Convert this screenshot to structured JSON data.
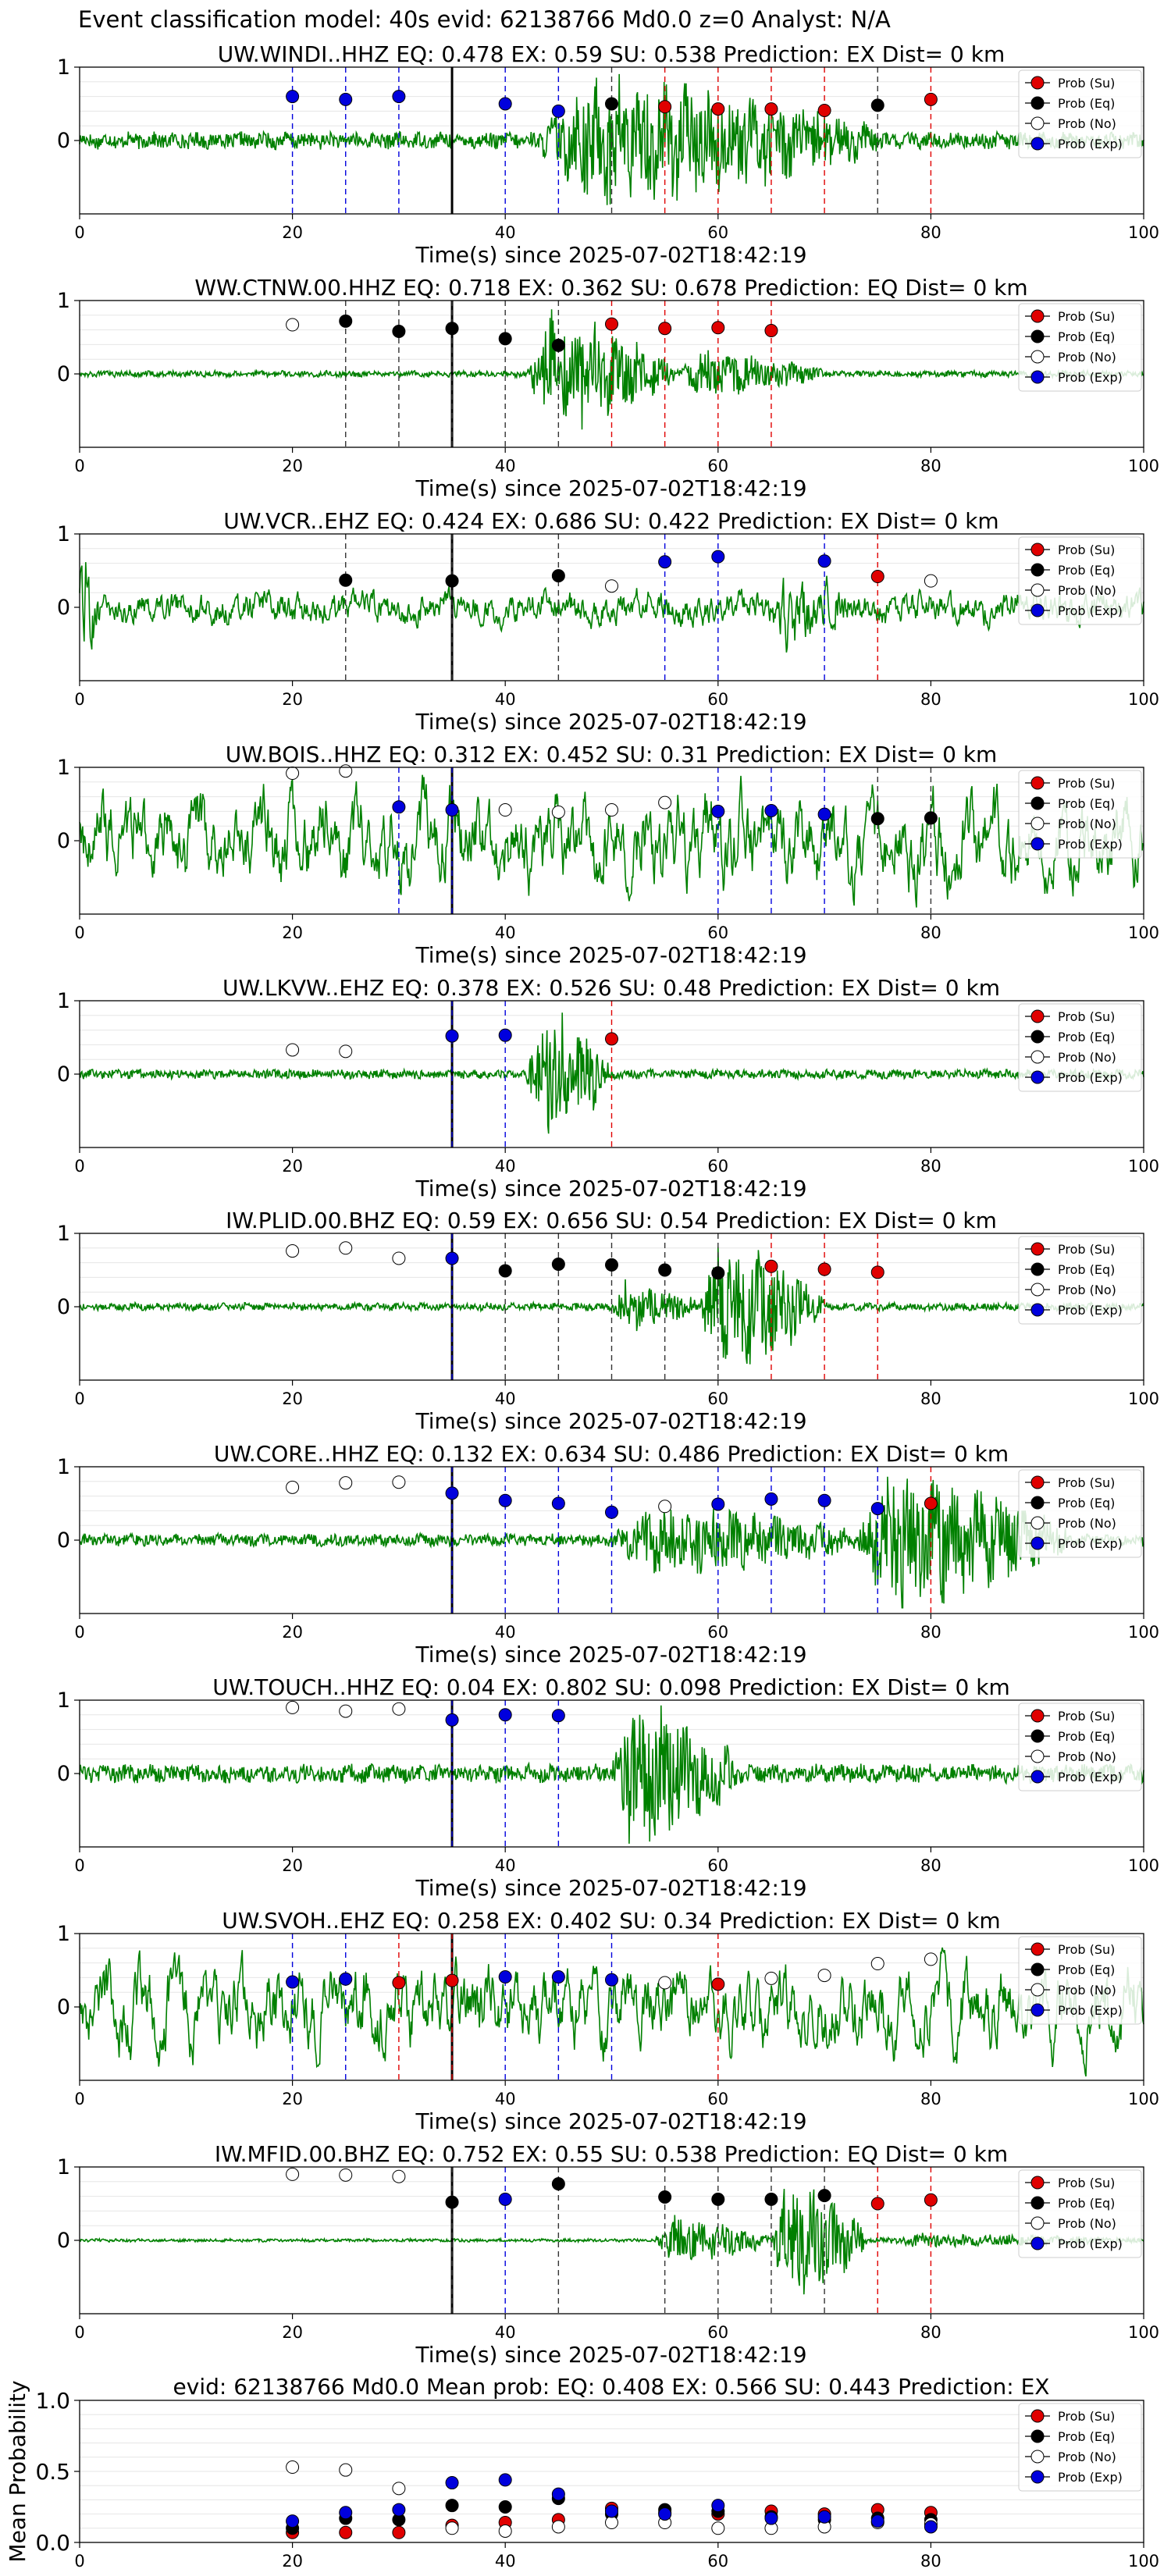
{
  "figure": {
    "title": "Event classification model: 40s evid: 62138766 Md0.0 z=0 Analyst: N/A"
  },
  "legend": {
    "entries": [
      {
        "label": "Prob (Su)",
        "fill": "#e00000"
      },
      {
        "label": "Prob (Eq)",
        "fill": "#000000"
      },
      {
        "label": "Prob (No)",
        "fill": "#ffffff"
      },
      {
        "label": "Prob (Exp)",
        "fill": "#0000dd"
      }
    ]
  },
  "colors": {
    "trace": "#008000",
    "su": "#e00000",
    "eq": "#000000",
    "no": "#ffffff",
    "exp": "#0000dd",
    "grid": "#e6e6e6"
  },
  "chart_data": [
    {
      "type": "line",
      "title": "UW.WINDI..HHZ   EQ: 0.478  EX: 0.59  SU: 0.538   Prediction: EX    Dist= 0 km",
      "xlabel": "Time(s) since 2025-07-02T18:42:19",
      "xlim": [
        0,
        100
      ],
      "ylim": [
        -1,
        1
      ],
      "xticks": [
        0,
        20,
        40,
        60,
        80,
        100
      ],
      "yticks": [
        0,
        1
      ],
      "origin_time": 35,
      "waveform": {
        "amplitude": 0.11,
        "events": [
          {
            "start": 43,
            "end": 75,
            "amp": 0.85
          }
        ],
        "noise": "low"
      },
      "points": [
        {
          "t": 20,
          "p": 0.6,
          "cls": "exp"
        },
        {
          "t": 25,
          "p": 0.56,
          "cls": "exp"
        },
        {
          "t": 30,
          "p": 0.6,
          "cls": "exp"
        },
        {
          "t": 40,
          "p": 0.5,
          "cls": "exp"
        },
        {
          "t": 45,
          "p": 0.4,
          "cls": "exp"
        },
        {
          "t": 50,
          "p": 0.5,
          "cls": "eq"
        },
        {
          "t": 55,
          "p": 0.46,
          "cls": "su"
        },
        {
          "t": 60,
          "p": 0.43,
          "cls": "su"
        },
        {
          "t": 65,
          "p": 0.43,
          "cls": "su"
        },
        {
          "t": 70,
          "p": 0.41,
          "cls": "su"
        },
        {
          "t": 75,
          "p": 0.48,
          "cls": "eq"
        },
        {
          "t": 80,
          "p": 0.56,
          "cls": "su"
        }
      ]
    },
    {
      "type": "line",
      "title": "WW.CTNW.00.HHZ   EQ: 0.718  EX: 0.362  SU: 0.678   Prediction: EQ    Dist= 0 km",
      "xlabel": "Time(s) since 2025-07-02T18:42:19",
      "xlim": [
        0,
        100
      ],
      "ylim": [
        -1,
        1
      ],
      "xticks": [
        0,
        20,
        40,
        60,
        80,
        100
      ],
      "yticks": [
        0,
        1
      ],
      "origin_time": 35,
      "waveform": {
        "amplitude": 0.04,
        "events": [
          {
            "start": 42,
            "end": 56,
            "amp": 0.85
          },
          {
            "start": 56,
            "end": 70,
            "amp": 0.3
          }
        ],
        "noise": "low"
      },
      "points": [
        {
          "t": 20,
          "p": 0.67,
          "cls": "no"
        },
        {
          "t": 25,
          "p": 0.72,
          "cls": "eq"
        },
        {
          "t": 30,
          "p": 0.58,
          "cls": "eq"
        },
        {
          "t": 35,
          "p": 0.62,
          "cls": "eq"
        },
        {
          "t": 40,
          "p": 0.48,
          "cls": "eq"
        },
        {
          "t": 45,
          "p": 0.39,
          "cls": "eq"
        },
        {
          "t": 50,
          "p": 0.68,
          "cls": "su"
        },
        {
          "t": 55,
          "p": 0.62,
          "cls": "su"
        },
        {
          "t": 60,
          "p": 0.63,
          "cls": "su"
        },
        {
          "t": 65,
          "p": 0.59,
          "cls": "su"
        }
      ]
    },
    {
      "type": "line",
      "title": "UW.VCR..EHZ   EQ: 0.424  EX: 0.686  SU: 0.422   Prediction: EX    Dist= 0 km",
      "xlabel": "Time(s) since 2025-07-02T18:42:19",
      "xlim": [
        0,
        100
      ],
      "ylim": [
        -1,
        1
      ],
      "xticks": [
        0,
        20,
        40,
        60,
        80,
        100
      ],
      "yticks": [
        0,
        1
      ],
      "origin_time": 35,
      "waveform": {
        "amplitude": 0.22,
        "events": [
          {
            "start": 0,
            "end": 2,
            "amp": 0.7
          },
          {
            "start": 65,
            "end": 72,
            "amp": 0.4
          }
        ],
        "noise": "medium"
      },
      "points": [
        {
          "t": 25,
          "p": 0.37,
          "cls": "eq"
        },
        {
          "t": 35,
          "p": 0.36,
          "cls": "eq"
        },
        {
          "t": 45,
          "p": 0.43,
          "cls": "eq"
        },
        {
          "t": 50,
          "p": 0.29,
          "cls": "no"
        },
        {
          "t": 55,
          "p": 0.62,
          "cls": "exp"
        },
        {
          "t": 60,
          "p": 0.69,
          "cls": "exp"
        },
        {
          "t": 70,
          "p": 0.63,
          "cls": "exp"
        },
        {
          "t": 75,
          "p": 0.42,
          "cls": "su"
        },
        {
          "t": 80,
          "p": 0.36,
          "cls": "no"
        }
      ]
    },
    {
      "type": "line",
      "title": "UW.BOIS..HHZ   EQ: 0.312  EX: 0.452  SU: 0.31   Prediction: EX    Dist= 0 km",
      "xlabel": "Time(s) since 2025-07-02T18:42:19",
      "xlim": [
        0,
        100
      ],
      "ylim": [
        -1,
        1
      ],
      "xticks": [
        0,
        20,
        40,
        60,
        80,
        100
      ],
      "yticks": [
        0,
        1
      ],
      "origin_time": 35,
      "waveform": {
        "amplitude": 0.6,
        "events": [],
        "noise": "high"
      },
      "points": [
        {
          "t": 20,
          "p": 0.92,
          "cls": "no"
        },
        {
          "t": 25,
          "p": 0.95,
          "cls": "no"
        },
        {
          "t": 30,
          "p": 0.46,
          "cls": "exp"
        },
        {
          "t": 35,
          "p": 0.42,
          "cls": "exp"
        },
        {
          "t": 40,
          "p": 0.42,
          "cls": "no"
        },
        {
          "t": 45,
          "p": 0.39,
          "cls": "no"
        },
        {
          "t": 50,
          "p": 0.42,
          "cls": "no"
        },
        {
          "t": 55,
          "p": 0.52,
          "cls": "no"
        },
        {
          "t": 60,
          "p": 0.4,
          "cls": "exp"
        },
        {
          "t": 65,
          "p": 0.41,
          "cls": "exp"
        },
        {
          "t": 70,
          "p": 0.36,
          "cls": "exp"
        },
        {
          "t": 75,
          "p": 0.3,
          "cls": "eq"
        },
        {
          "t": 80,
          "p": 0.31,
          "cls": "eq"
        }
      ]
    },
    {
      "type": "line",
      "title": "UW.LKVW..EHZ   EQ: 0.378  EX: 0.526  SU: 0.48   Prediction: EX    Dist= 0 km",
      "xlabel": "Time(s) since 2025-07-02T18:42:19",
      "xlim": [
        0,
        100
      ],
      "ylim": [
        -1,
        1
      ],
      "xticks": [
        0,
        20,
        40,
        60,
        80,
        100
      ],
      "yticks": [
        0,
        1
      ],
      "origin_time": 35,
      "waveform": {
        "amplitude": 0.06,
        "events": [
          {
            "start": 42,
            "end": 50,
            "amp": 0.95
          }
        ],
        "noise": "low"
      },
      "points": [
        {
          "t": 20,
          "p": 0.33,
          "cls": "no"
        },
        {
          "t": 25,
          "p": 0.31,
          "cls": "no"
        },
        {
          "t": 35,
          "p": 0.52,
          "cls": "exp"
        },
        {
          "t": 40,
          "p": 0.53,
          "cls": "exp"
        },
        {
          "t": 50,
          "p": 0.48,
          "cls": "su"
        }
      ]
    },
    {
      "type": "line",
      "title": "IW.PLID.00.BHZ   EQ: 0.59  EX: 0.656  SU: 0.54   Prediction: EX    Dist= 0 km",
      "xlabel": "Time(s) since 2025-07-02T18:42:19",
      "xlim": [
        0,
        100
      ],
      "ylim": [
        -1,
        1
      ],
      "xticks": [
        0,
        20,
        40,
        60,
        80,
        100
      ],
      "yticks": [
        0,
        1
      ],
      "origin_time": 35,
      "waveform": {
        "amplitude": 0.05,
        "events": [
          {
            "start": 50,
            "end": 58,
            "amp": 0.35
          },
          {
            "start": 58,
            "end": 70,
            "amp": 0.95
          }
        ],
        "noise": "low"
      },
      "points": [
        {
          "t": 20,
          "p": 0.76,
          "cls": "no"
        },
        {
          "t": 25,
          "p": 0.8,
          "cls": "no"
        },
        {
          "t": 30,
          "p": 0.66,
          "cls": "no"
        },
        {
          "t": 35,
          "p": 0.66,
          "cls": "exp"
        },
        {
          "t": 40,
          "p": 0.49,
          "cls": "eq"
        },
        {
          "t": 45,
          "p": 0.58,
          "cls": "eq"
        },
        {
          "t": 50,
          "p": 0.57,
          "cls": "eq"
        },
        {
          "t": 55,
          "p": 0.5,
          "cls": "eq"
        },
        {
          "t": 60,
          "p": 0.46,
          "cls": "eq"
        },
        {
          "t": 65,
          "p": 0.55,
          "cls": "su"
        },
        {
          "t": 70,
          "p": 0.51,
          "cls": "su"
        },
        {
          "t": 75,
          "p": 0.47,
          "cls": "su"
        }
      ]
    },
    {
      "type": "line",
      "title": "UW.CORE..HHZ   EQ: 0.132  EX: 0.634  SU: 0.486   Prediction: EX    Dist= 0 km",
      "xlabel": "Time(s) since 2025-07-02T18:42:19",
      "xlim": [
        0,
        100
      ],
      "ylim": [
        -1,
        1
      ],
      "xticks": [
        0,
        20,
        40,
        60,
        80,
        100
      ],
      "yticks": [
        0,
        1
      ],
      "origin_time": 35,
      "waveform": {
        "amplitude": 0.08,
        "events": [
          {
            "start": 50,
            "end": 73,
            "amp": 0.45
          },
          {
            "start": 73,
            "end": 93,
            "amp": 0.95
          }
        ],
        "noise": "low"
      },
      "points": [
        {
          "t": 20,
          "p": 0.72,
          "cls": "no"
        },
        {
          "t": 25,
          "p": 0.78,
          "cls": "no"
        },
        {
          "t": 30,
          "p": 0.79,
          "cls": "no"
        },
        {
          "t": 35,
          "p": 0.64,
          "cls": "exp"
        },
        {
          "t": 40,
          "p": 0.54,
          "cls": "exp"
        },
        {
          "t": 45,
          "p": 0.5,
          "cls": "exp"
        },
        {
          "t": 50,
          "p": 0.38,
          "cls": "exp"
        },
        {
          "t": 55,
          "p": 0.46,
          "cls": "no"
        },
        {
          "t": 60,
          "p": 0.49,
          "cls": "exp"
        },
        {
          "t": 65,
          "p": 0.56,
          "cls": "exp"
        },
        {
          "t": 70,
          "p": 0.54,
          "cls": "exp"
        },
        {
          "t": 75,
          "p": 0.43,
          "cls": "exp"
        },
        {
          "t": 80,
          "p": 0.5,
          "cls": "su"
        }
      ]
    },
    {
      "type": "line",
      "title": "UW.TOUCH..HHZ   EQ: 0.04  EX: 0.802  SU: 0.098   Prediction: EX    Dist= 0 km",
      "xlabel": "Time(s) since 2025-07-02T18:42:19",
      "xlim": [
        0,
        100
      ],
      "ylim": [
        -1,
        1
      ],
      "xticks": [
        0,
        20,
        40,
        60,
        80,
        100
      ],
      "yticks": [
        0,
        1
      ],
      "origin_time": 35,
      "waveform": {
        "amplitude": 0.12,
        "events": [
          {
            "start": 50,
            "end": 62,
            "amp": 0.95
          }
        ],
        "noise": "low"
      },
      "points": [
        {
          "t": 20,
          "p": 0.9,
          "cls": "no"
        },
        {
          "t": 25,
          "p": 0.85,
          "cls": "no"
        },
        {
          "t": 30,
          "p": 0.88,
          "cls": "no"
        },
        {
          "t": 35,
          "p": 0.73,
          "cls": "exp"
        },
        {
          "t": 40,
          "p": 0.8,
          "cls": "exp"
        },
        {
          "t": 45,
          "p": 0.79,
          "cls": "exp"
        }
      ]
    },
    {
      "type": "line",
      "title": "UW.SVOH..EHZ   EQ: 0.258  EX: 0.402  SU: 0.34   Prediction: EX    Dist= 0 km",
      "xlabel": "Time(s) since 2025-07-02T18:42:19",
      "xlim": [
        0,
        100
      ],
      "ylim": [
        -1,
        1
      ],
      "xticks": [
        0,
        20,
        40,
        60,
        80,
        100
      ],
      "yticks": [
        0,
        1
      ],
      "origin_time": 35,
      "waveform": {
        "amplitude": 0.55,
        "events": [],
        "noise": "high"
      },
      "points": [
        {
          "t": 20,
          "p": 0.34,
          "cls": "exp"
        },
        {
          "t": 25,
          "p": 0.38,
          "cls": "exp"
        },
        {
          "t": 30,
          "p": 0.33,
          "cls": "su"
        },
        {
          "t": 35,
          "p": 0.36,
          "cls": "su"
        },
        {
          "t": 40,
          "p": 0.41,
          "cls": "exp"
        },
        {
          "t": 45,
          "p": 0.41,
          "cls": "exp"
        },
        {
          "t": 50,
          "p": 0.37,
          "cls": "exp"
        },
        {
          "t": 55,
          "p": 0.33,
          "cls": "no"
        },
        {
          "t": 60,
          "p": 0.31,
          "cls": "su"
        },
        {
          "t": 65,
          "p": 0.39,
          "cls": "no"
        },
        {
          "t": 70,
          "p": 0.43,
          "cls": "no"
        },
        {
          "t": 75,
          "p": 0.59,
          "cls": "no"
        },
        {
          "t": 80,
          "p": 0.65,
          "cls": "no"
        }
      ]
    },
    {
      "type": "line",
      "title": "IW.MFID.00.BHZ   EQ: 0.752  EX: 0.55  SU: 0.538   Prediction: EQ    Dist= 0 km",
      "xlabel": "Time(s) since 2025-07-02T18:42:19",
      "xlim": [
        0,
        100
      ],
      "ylim": [
        -1,
        1
      ],
      "xticks": [
        0,
        20,
        40,
        60,
        80,
        100
      ],
      "yticks": [
        0,
        1
      ],
      "origin_time": 35,
      "waveform": {
        "amplitude": 0.02,
        "events": [
          {
            "start": 54,
            "end": 65,
            "amp": 0.35
          },
          {
            "start": 65,
            "end": 74,
            "amp": 0.95
          },
          {
            "start": 74,
            "end": 100,
            "amp": 0.08
          }
        ],
        "noise": "low"
      },
      "points": [
        {
          "t": 20,
          "p": 0.9,
          "cls": "no"
        },
        {
          "t": 25,
          "p": 0.89,
          "cls": "no"
        },
        {
          "t": 30,
          "p": 0.87,
          "cls": "no"
        },
        {
          "t": 35,
          "p": 0.52,
          "cls": "eq"
        },
        {
          "t": 40,
          "p": 0.56,
          "cls": "exp"
        },
        {
          "t": 45,
          "p": 0.77,
          "cls": "eq"
        },
        {
          "t": 55,
          "p": 0.59,
          "cls": "eq"
        },
        {
          "t": 60,
          "p": 0.56,
          "cls": "eq"
        },
        {
          "t": 65,
          "p": 0.56,
          "cls": "eq"
        },
        {
          "t": 70,
          "p": 0.61,
          "cls": "eq"
        },
        {
          "t": 75,
          "p": 0.5,
          "cls": "su"
        },
        {
          "t": 80,
          "p": 0.55,
          "cls": "su"
        }
      ]
    },
    {
      "type": "scatter",
      "title": "evid: 62138766  Md0.0   Mean prob:   EQ: 0.408  EX: 0.566  SU: 0.443   Prediction: EX",
      "ylabel": "Mean Probability",
      "xlim": [
        0,
        100
      ],
      "ylim": [
        0,
        1
      ],
      "xticks": [
        0,
        20,
        40,
        60,
        80,
        100
      ],
      "yticks": [
        0.0,
        0.5,
        1.0
      ],
      "x": [
        20,
        25,
        30,
        35,
        40,
        45,
        50,
        55,
        60,
        65,
        70,
        75,
        80
      ],
      "series": [
        {
          "name": "Prob (Su)",
          "cls": "su",
          "values": [
            0.07,
            0.07,
            0.07,
            0.12,
            0.14,
            0.16,
            0.24,
            0.21,
            0.2,
            0.22,
            0.2,
            0.23,
            0.21
          ]
        },
        {
          "name": "Prob (Eq)",
          "cls": "eq",
          "values": [
            0.1,
            0.17,
            0.16,
            0.26,
            0.25,
            0.31,
            0.2,
            0.23,
            0.22,
            0.18,
            0.16,
            0.17,
            0.16
          ]
        },
        {
          "name": "Prob (No)",
          "cls": "no",
          "values": [
            0.53,
            0.51,
            0.38,
            0.1,
            0.08,
            0.11,
            0.14,
            0.14,
            0.1,
            0.1,
            0.11,
            0.14,
            0.13
          ]
        },
        {
          "name": "Prob (Exp)",
          "cls": "exp",
          "values": [
            0.15,
            0.21,
            0.23,
            0.42,
            0.44,
            0.34,
            0.22,
            0.2,
            0.26,
            0.17,
            0.18,
            0.15,
            0.11
          ]
        }
      ]
    }
  ]
}
